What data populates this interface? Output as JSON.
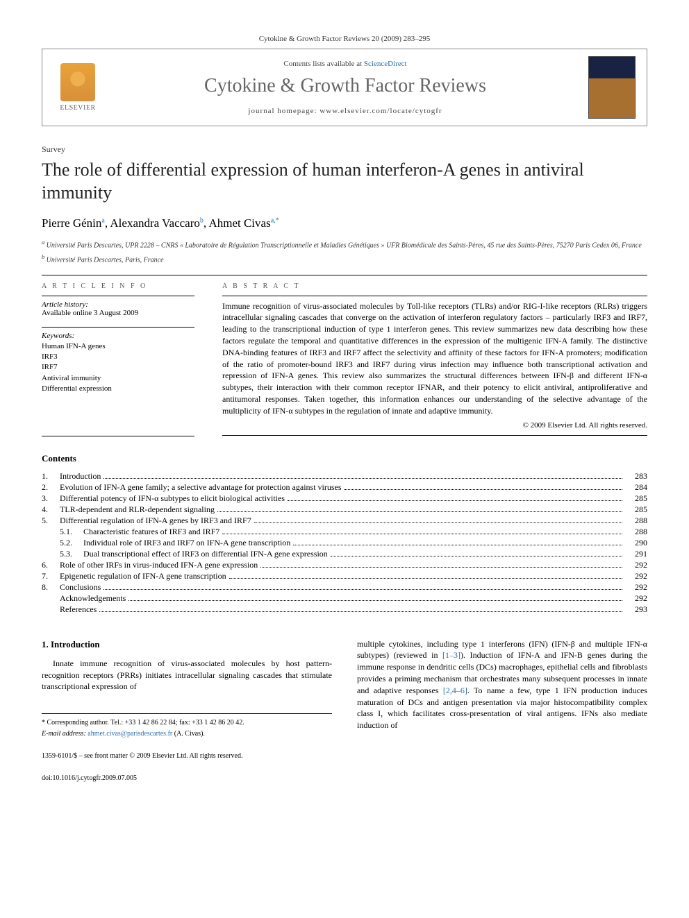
{
  "header": {
    "citation": "Cytokine & Growth Factor Reviews 20 (2009) 283–295",
    "contents_avail": "Contents lists available at ",
    "sciencedirect": "ScienceDirect",
    "journal": "Cytokine & Growth Factor Reviews",
    "homepage_label": "journal homepage: www.elsevier.com/locate/cytogfr",
    "publisher": "ELSEVIER"
  },
  "article": {
    "type": "Survey",
    "title": "The role of differential expression of human interferon-A genes in antiviral immunity",
    "authors": [
      {
        "name": "Pierre Génin",
        "aff": "a"
      },
      {
        "name": "Alexandra Vaccaro",
        "aff": "b"
      },
      {
        "name": "Ahmet Civas",
        "aff": "a,*"
      }
    ],
    "affiliations": {
      "a": "Université Paris Descartes, UPR 2228 – CNRS « Laboratoire de Régulation Transcriptionnelle et Maladies Génétiques » UFR Biomédicale des Saints-Pères, 45 rue des Saints-Pères, 75270 Paris Cedex 06, France",
      "b": "Université Paris Descartes, Paris, France"
    }
  },
  "info": {
    "section_label": "A R T I C L E   I N F O",
    "history_label": "Article history:",
    "history": "Available online 3 August 2009",
    "keywords_label": "Keywords:",
    "keywords": [
      "Human IFN-A genes",
      "IRF3",
      "IRF7",
      "Antiviral immunity",
      "Differential expression"
    ]
  },
  "abstract": {
    "label": "A B S T R A C T",
    "text": "Immune recognition of virus-associated molecules by Toll-like receptors (TLRs) and/or RIG-I-like receptors (RLRs) triggers intracellular signaling cascades that converge on the activation of interferon regulatory factors – particularly IRF3 and IRF7, leading to the transcriptional induction of type 1 interferon genes. This review summarizes new data describing how these factors regulate the temporal and quantitative differences in the expression of the multigenic IFN-A family. The distinctive DNA-binding features of IRF3 and IRF7 affect the selectivity and affinity of these factors for IFN-A promoters; modification of the ratio of promoter-bound IRF3 and IRF7 during virus infection may influence both transcriptional activation and repression of IFN-A genes. This review also summarizes the structural differences between IFN-β and different IFN-α subtypes, their interaction with their common receptor IFNAR, and their potency to elicit antiviral, antiproliferative and antitumoral responses. Taken together, this information enhances our understanding of the selective advantage of the multiplicity of IFN-α subtypes in the regulation of innate and adaptive immunity.",
    "copyright": "© 2009 Elsevier Ltd. All rights reserved."
  },
  "contents": {
    "heading": "Contents",
    "items": [
      {
        "num": "1.",
        "title": "Introduction",
        "page": "283"
      },
      {
        "num": "2.",
        "title": "Evolution of IFN-A gene family; a selective advantage for protection against viruses",
        "page": "284"
      },
      {
        "num": "3.",
        "title": "Differential potency of IFN-α subtypes to elicit biological activities",
        "page": "285"
      },
      {
        "num": "4.",
        "title": "TLR-dependent and RLR-dependent signaling",
        "page": "285"
      },
      {
        "num": "5.",
        "title": "Differential regulation of IFN-A genes by IRF3 and IRF7",
        "page": "288"
      },
      {
        "num": "5.1.",
        "title": "Characteristic features of IRF3 and IRF7",
        "page": "288",
        "sub": true
      },
      {
        "num": "5.2.",
        "title": "Individual role of IRF3 and IRF7 on IFN-A gene transcription",
        "page": "290",
        "sub": true
      },
      {
        "num": "5.3.",
        "title": "Dual transcriptional effect of IRF3 on differential IFN-A gene expression",
        "page": "291",
        "sub": true
      },
      {
        "num": "6.",
        "title": "Role of other IRFs in virus-induced IFN-A gene expression",
        "page": "292"
      },
      {
        "num": "7.",
        "title": "Epigenetic regulation of IFN-A gene transcription",
        "page": "292"
      },
      {
        "num": "8.",
        "title": "Conclusions",
        "page": "292"
      },
      {
        "num": "",
        "title": "Acknowledgements",
        "page": "292"
      },
      {
        "num": "",
        "title": "References",
        "page": "293"
      }
    ]
  },
  "body": {
    "intro_heading": "1. Introduction",
    "col1": "Innate immune recognition of virus-associated molecules by host pattern-recognition receptors (PRRs) initiates intracellular signaling cascades that stimulate transcriptional expression of",
    "col2_a": "multiple cytokines, including type 1 interferons (IFN) (IFN-β and multiple IFN-α subtypes) (reviewed in ",
    "col2_ref1": "[1–3]",
    "col2_b": "). Induction of IFN-A and IFN-B genes during the immune response in dendritic cells (DCs) macrophages, epithelial cells and fibroblasts provides a priming mechanism that orchestrates many subsequent processes in innate and adaptive responses ",
    "col2_ref2": "[2,4–6]",
    "col2_c": ". To name a few, type 1 IFN production induces maturation of DCs and antigen presentation via major histocompatibility complex class I, which facilitates cross-presentation of viral antigens. IFNs also mediate induction of"
  },
  "footnotes": {
    "corr": "* Corresponding author. Tel.: +33 1 42 86 22 84; fax: +33 1 42 86 20 42.",
    "email_label": "E-mail address: ",
    "email": "ahmet.civas@parisdescartes.fr",
    "email_who": " (A. Civas).",
    "issn": "1359-6101/$ – see front matter © 2009 Elsevier Ltd. All rights reserved.",
    "doi": "doi:10.1016/j.cytogfr.2009.07.005"
  },
  "colors": {
    "link": "#2a6fa8",
    "text": "#000000",
    "muted": "#666666"
  }
}
